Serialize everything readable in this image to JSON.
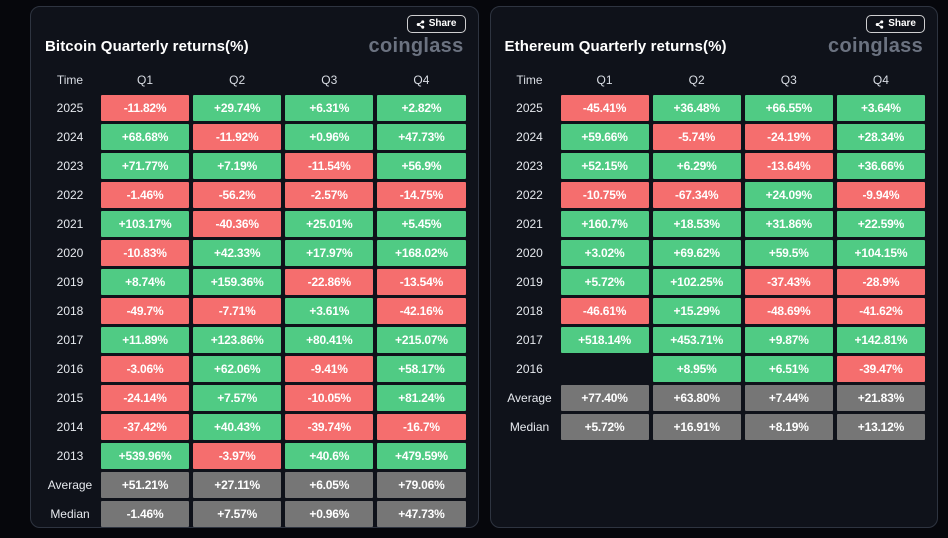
{
  "app": {
    "share_label": "Share",
    "logo_text": "coinglass"
  },
  "icons": {
    "share": "share-nodes"
  },
  "colors": {
    "positive": "#50cb84",
    "negative": "#f56e6e",
    "summary": "#767676",
    "page_bg": "#06070c",
    "card_bg": "#0f121a",
    "card_border": "#2e3440"
  },
  "chart_data": [
    {
      "type": "table",
      "title": "Bitcoin Quarterly returns(%)",
      "columns": [
        "Time",
        "Q1",
        "Q2",
        "Q3",
        "Q4"
      ],
      "rows": [
        {
          "label": "2025",
          "kind": "year",
          "values": [
            "-11.82%",
            "+29.74%",
            "+6.31%",
            "+2.82%"
          ]
        },
        {
          "label": "2024",
          "kind": "year",
          "values": [
            "+68.68%",
            "-11.92%",
            "+0.96%",
            "+47.73%"
          ]
        },
        {
          "label": "2023",
          "kind": "year",
          "values": [
            "+71.77%",
            "+7.19%",
            "-11.54%",
            "+56.9%"
          ]
        },
        {
          "label": "2022",
          "kind": "year",
          "values": [
            "-1.46%",
            "-56.2%",
            "-2.57%",
            "-14.75%"
          ]
        },
        {
          "label": "2021",
          "kind": "year",
          "values": [
            "+103.17%",
            "-40.36%",
            "+25.01%",
            "+5.45%"
          ]
        },
        {
          "label": "2020",
          "kind": "year",
          "values": [
            "-10.83%",
            "+42.33%",
            "+17.97%",
            "+168.02%"
          ]
        },
        {
          "label": "2019",
          "kind": "year",
          "values": [
            "+8.74%",
            "+159.36%",
            "-22.86%",
            "-13.54%"
          ]
        },
        {
          "label": "2018",
          "kind": "year",
          "values": [
            "-49.7%",
            "-7.71%",
            "+3.61%",
            "-42.16%"
          ]
        },
        {
          "label": "2017",
          "kind": "year",
          "values": [
            "+11.89%",
            "+123.86%",
            "+80.41%",
            "+215.07%"
          ]
        },
        {
          "label": "2016",
          "kind": "year",
          "values": [
            "-3.06%",
            "+62.06%",
            "-9.41%",
            "+58.17%"
          ]
        },
        {
          "label": "2015",
          "kind": "year",
          "values": [
            "-24.14%",
            "+7.57%",
            "-10.05%",
            "+81.24%"
          ]
        },
        {
          "label": "2014",
          "kind": "year",
          "values": [
            "-37.42%",
            "+40.43%",
            "-39.74%",
            "-16.7%"
          ]
        },
        {
          "label": "2013",
          "kind": "year",
          "values": [
            "+539.96%",
            "-3.97%",
            "+40.6%",
            "+479.59%"
          ]
        },
        {
          "label": "Average",
          "kind": "summary",
          "values": [
            "+51.21%",
            "+27.11%",
            "+6.05%",
            "+79.06%"
          ]
        },
        {
          "label": "Median",
          "kind": "summary",
          "values": [
            "-1.46%",
            "+7.57%",
            "+0.96%",
            "+47.73%"
          ]
        }
      ]
    },
    {
      "type": "table",
      "title": "Ethereum Quarterly returns(%)",
      "columns": [
        "Time",
        "Q1",
        "Q2",
        "Q3",
        "Q4"
      ],
      "rows": [
        {
          "label": "2025",
          "kind": "year",
          "values": [
            "-45.41%",
            "+36.48%",
            "+66.55%",
            "+3.64%"
          ]
        },
        {
          "label": "2024",
          "kind": "year",
          "values": [
            "+59.66%",
            "-5.74%",
            "-24.19%",
            "+28.34%"
          ]
        },
        {
          "label": "2023",
          "kind": "year",
          "values": [
            "+52.15%",
            "+6.29%",
            "-13.64%",
            "+36.66%"
          ]
        },
        {
          "label": "2022",
          "kind": "year",
          "values": [
            "-10.75%",
            "-67.34%",
            "+24.09%",
            "-9.94%"
          ]
        },
        {
          "label": "2021",
          "kind": "year",
          "values": [
            "+160.7%",
            "+18.53%",
            "+31.86%",
            "+22.59%"
          ]
        },
        {
          "label": "2020",
          "kind": "year",
          "values": [
            "+3.02%",
            "+69.62%",
            "+59.5%",
            "+104.15%"
          ]
        },
        {
          "label": "2019",
          "kind": "year",
          "values": [
            "+5.72%",
            "+102.25%",
            "-37.43%",
            "-28.9%"
          ]
        },
        {
          "label": "2018",
          "kind": "year",
          "values": [
            "-46.61%",
            "+15.29%",
            "-48.69%",
            "-41.62%"
          ]
        },
        {
          "label": "2017",
          "kind": "year",
          "values": [
            "+518.14%",
            "+453.71%",
            "+9.87%",
            "+142.81%"
          ]
        },
        {
          "label": "2016",
          "kind": "year",
          "values": [
            "",
            "+8.95%",
            "+6.51%",
            "-39.47%"
          ]
        },
        {
          "label": "Average",
          "kind": "summary",
          "values": [
            "+77.40%",
            "+63.80%",
            "+7.44%",
            "+21.83%"
          ]
        },
        {
          "label": "Median",
          "kind": "summary",
          "values": [
            "+5.72%",
            "+16.91%",
            "+8.19%",
            "+13.12%"
          ]
        }
      ]
    }
  ]
}
